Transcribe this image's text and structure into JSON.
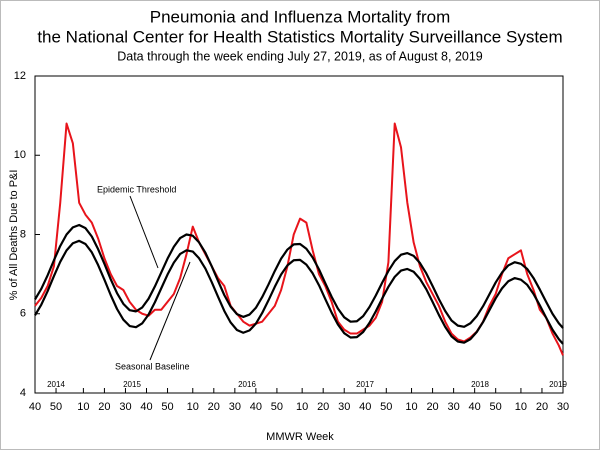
{
  "chart_data": {
    "type": "line",
    "title": "Pneumonia and Influenza Mortality from",
    "subtitle": "the National Center for Health Statistics Mortality Surveillance System",
    "note": "Data through the week ending July 27, 2019, as of August 8, 2019",
    "x_label": "MMWR Week",
    "y_label": "% of All Deaths Due to P&I",
    "year_labels": [
      "2014",
      "2015",
      "2016",
      "2017",
      "2018",
      "2019"
    ],
    "xlim": [
      0,
      251
    ],
    "xticks": [
      {
        "value": 0,
        "label": "40"
      },
      {
        "value": 10,
        "label": "50"
      },
      {
        "value": 23,
        "label": "10"
      },
      {
        "value": 33,
        "label": "20"
      },
      {
        "value": 43,
        "label": "30"
      },
      {
        "value": 53,
        "label": "40"
      },
      {
        "value": 63,
        "label": "50"
      },
      {
        "value": 75,
        "label": "10"
      },
      {
        "value": 85,
        "label": "20"
      },
      {
        "value": 95,
        "label": "30"
      },
      {
        "value": 105,
        "label": "40"
      },
      {
        "value": 115,
        "label": "50"
      },
      {
        "value": 127,
        "label": "10"
      },
      {
        "value": 137,
        "label": "20"
      },
      {
        "value": 147,
        "label": "30"
      },
      {
        "value": 157,
        "label": "40"
      },
      {
        "value": 167,
        "label": "50"
      },
      {
        "value": 179,
        "label": "10"
      },
      {
        "value": 189,
        "label": "20"
      },
      {
        "value": 199,
        "label": "30"
      },
      {
        "value": 209,
        "label": "40"
      },
      {
        "value": 219,
        "label": "50"
      },
      {
        "value": 231,
        "label": "10"
      },
      {
        "value": 241,
        "label": "20"
      },
      {
        "value": 251,
        "label": "30"
      }
    ],
    "ylim": [
      4,
      12
    ],
    "yticks": [
      4,
      6,
      8,
      10,
      12
    ],
    "x": [
      0,
      3,
      6,
      9,
      12,
      15,
      18,
      21,
      24,
      27,
      30,
      33,
      36,
      39,
      42,
      45,
      48,
      51,
      54,
      57,
      60,
      63,
      66,
      69,
      72,
      75,
      78,
      81,
      84,
      87,
      90,
      93,
      96,
      99,
      102,
      105,
      108,
      111,
      114,
      117,
      120,
      123,
      126,
      129,
      132,
      135,
      138,
      141,
      144,
      147,
      150,
      153,
      156,
      159,
      162,
      165,
      168,
      171,
      174,
      177,
      180,
      183,
      186,
      189,
      192,
      195,
      198,
      201,
      204,
      207,
      210,
      213,
      216,
      219,
      222,
      225,
      228,
      231,
      234,
      237,
      240,
      243,
      246,
      249,
      251
    ],
    "series": [
      {
        "color": "#e8141b",
        "values": [
          6.2,
          6.4,
          6.7,
          7.2,
          8.8,
          10.8,
          10.3,
          8.8,
          8.5,
          8.3,
          7.9,
          7.4,
          7.0,
          6.7,
          6.6,
          6.3,
          6.1,
          6.0,
          5.95,
          6.1,
          6.1,
          6.3,
          6.5,
          6.9,
          7.5,
          8.2,
          7.8,
          7.5,
          7.2,
          6.9,
          6.7,
          6.2,
          6.0,
          5.8,
          5.7,
          5.75,
          5.8,
          6.0,
          6.2,
          6.6,
          7.2,
          8.0,
          8.4,
          8.3,
          7.6,
          7.0,
          6.7,
          6.3,
          5.8,
          5.6,
          5.5,
          5.5,
          5.6,
          5.7,
          5.9,
          6.3,
          7.3,
          10.8,
          10.2,
          8.8,
          7.8,
          7.2,
          6.8,
          6.5,
          6.2,
          5.8,
          5.5,
          5.35,
          5.3,
          5.4,
          5.55,
          5.8,
          6.2,
          6.5,
          7.0,
          7.4,
          7.5,
          7.6,
          7.0,
          6.6,
          6.1,
          5.9,
          5.5,
          5.2,
          4.95
        ]
      },
      {
        "name": "Epidemic Threshold",
        "color": "#000000",
        "values": [
          6.36,
          6.63,
          6.97,
          7.35,
          7.71,
          8.0,
          8.18,
          8.24,
          8.16,
          7.95,
          7.63,
          7.26,
          6.87,
          6.52,
          6.25,
          6.09,
          6.06,
          6.16,
          6.38,
          6.69,
          7.04,
          7.39,
          7.69,
          7.91,
          8.0,
          7.97,
          7.8,
          7.54,
          7.2,
          6.83,
          6.47,
          6.18,
          5.99,
          5.92,
          5.98,
          6.15,
          6.42,
          6.74,
          7.08,
          7.39,
          7.62,
          7.75,
          7.76,
          7.64,
          7.42,
          7.12,
          6.77,
          6.43,
          6.13,
          5.91,
          5.8,
          5.81,
          5.94,
          6.17,
          6.46,
          6.78,
          7.08,
          7.33,
          7.49,
          7.53,
          7.46,
          7.28,
          7.02,
          6.7,
          6.37,
          6.07,
          5.83,
          5.7,
          5.67,
          5.76,
          5.94,
          6.19,
          6.49,
          6.79,
          7.04,
          7.22,
          7.3,
          7.26,
          7.13,
          6.9,
          6.61,
          6.3,
          6.0,
          5.76,
          5.64
        ]
      },
      {
        "name": "Seasonal Baseline",
        "color": "#000000",
        "values": [
          5.96,
          6.23,
          6.57,
          6.95,
          7.31,
          7.6,
          7.78,
          7.84,
          7.76,
          7.55,
          7.23,
          6.86,
          6.47,
          6.12,
          5.85,
          5.69,
          5.66,
          5.76,
          5.98,
          6.29,
          6.64,
          6.99,
          7.29,
          7.51,
          7.6,
          7.57,
          7.4,
          7.14,
          6.8,
          6.43,
          6.07,
          5.78,
          5.59,
          5.52,
          5.58,
          5.75,
          6.02,
          6.34,
          6.68,
          6.99,
          7.22,
          7.35,
          7.36,
          7.24,
          7.02,
          6.72,
          6.37,
          6.03,
          5.73,
          5.51,
          5.4,
          5.41,
          5.54,
          5.77,
          6.06,
          6.38,
          6.68,
          6.93,
          7.09,
          7.13,
          7.06,
          6.88,
          6.62,
          6.3,
          5.97,
          5.67,
          5.43,
          5.3,
          5.27,
          5.36,
          5.54,
          5.79,
          6.09,
          6.39,
          6.64,
          6.82,
          6.9,
          6.86,
          6.73,
          6.5,
          6.21,
          5.9,
          5.6,
          5.36,
          5.24
        ]
      }
    ]
  }
}
